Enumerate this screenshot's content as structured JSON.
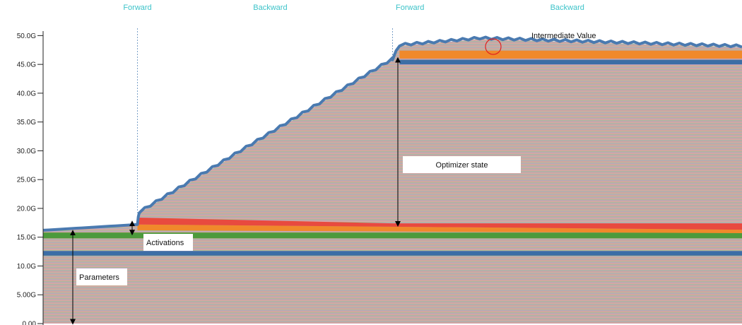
{
  "phases": [
    {
      "label": "Forward",
      "x_center": 0.54
    },
    {
      "label": "Backward",
      "x_center": 1.3
    },
    {
      "label": "Forward",
      "x_center": 2.1
    },
    {
      "label": "Backward",
      "x_center": 3.0
    }
  ],
  "chart_data": {
    "type": "area",
    "title": "",
    "xlabel": "",
    "ylabel": "",
    "ylim": [
      0,
      52.5
    ],
    "xlim": [
      0,
      4.0
    ],
    "y_ticks": [
      {
        "value": 0,
        "label": "0.00"
      },
      {
        "value": 5,
        "label": "5.00G"
      },
      {
        "value": 10,
        "label": "10.0G"
      },
      {
        "value": 15,
        "label": "15.0G"
      },
      {
        "value": 20,
        "label": "20.0G"
      },
      {
        "value": 25,
        "label": "25.0G"
      },
      {
        "value": 30,
        "label": "30.0G"
      },
      {
        "value": 35,
        "label": "35.0G"
      },
      {
        "value": 40,
        "label": "40.0G"
      },
      {
        "value": 45,
        "label": "45.0G"
      },
      {
        "value": 50,
        "label": "50.0G"
      }
    ],
    "phase_boundaries": [
      0.54,
      2.0
    ],
    "total_memory_outline": [
      {
        "x": 0.0,
        "y": 16.2
      },
      {
        "x": 0.54,
        "y": 17.2
      },
      {
        "x": 0.55,
        "y": 19.2
      },
      {
        "x": 2.0,
        "y": 45.8
      },
      {
        "x": 2.04,
        "y": 48.2
      },
      {
        "x": 2.5,
        "y": 49.4
      },
      {
        "x": 4.0,
        "y": 48.0
      }
    ],
    "bands": [
      {
        "name": "Parameters",
        "color": "#3c6ea5",
        "y0": 11.8,
        "y1": 12.6
      },
      {
        "name": "Parameters",
        "color": "#4c9a3c",
        "y0": 14.8,
        "y1": 15.8
      },
      {
        "name": "Activations",
        "color": "#f0892b",
        "y0": 16.2,
        "y1": 17.2
      },
      {
        "name": "Activations",
        "color": "#e84a3f",
        "y0": 17.2,
        "y1": 18.4
      },
      {
        "name": "Intermediate Value",
        "color": "#f0892b",
        "y0": 46.0,
        "y1": 47.4
      },
      {
        "name": "Intermediate Value",
        "color": "#3c6ea5",
        "y0": 45.0,
        "y1": 45.8
      }
    ],
    "annotations": [
      {
        "text": "Parameters",
        "y_from": 0,
        "y_to": 15.8
      },
      {
        "text": "Activations",
        "y_from": 15.8,
        "y_to": 17.2
      },
      {
        "text": "Optimizer state",
        "y_from": 17.2,
        "y_to": 45.8
      },
      {
        "text": "Intermediate Value",
        "y_from": 47.4,
        "y_to": 49.4
      }
    ]
  }
}
